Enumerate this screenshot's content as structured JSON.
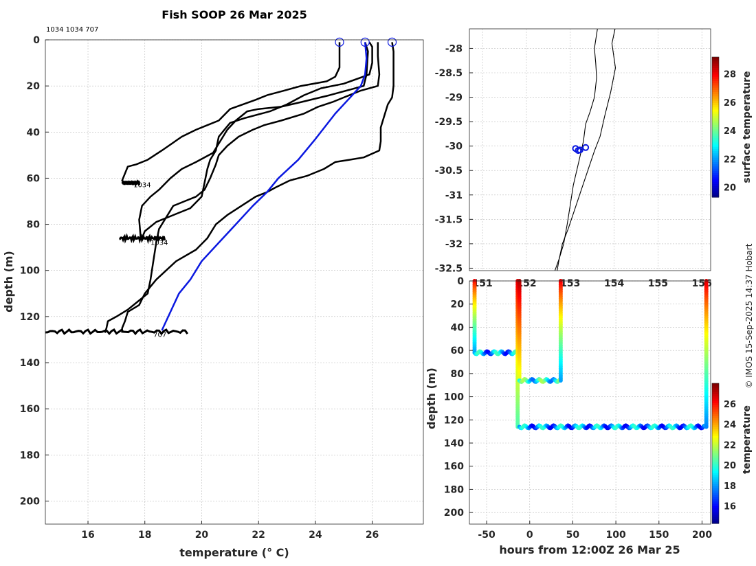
{
  "colors": {
    "profile": "#000000",
    "highlight": "#0a18e0",
    "frame": "#262626",
    "grid": "#bcbcbc"
  },
  "credit": "© IMOS 15-Sep-2025 14:37 Hobart",
  "chart_data": [
    {
      "type": "line",
      "title": "Fish SOOP 26 Mar 2025",
      "subtitle": "1034 1034 707",
      "xlabel": "temperature (° C)",
      "ylabel": "depth (m)",
      "xlim": [
        14.5,
        27.8
      ],
      "ylim": [
        210,
        0
      ],
      "xticks": [
        16,
        18,
        20,
        22,
        24,
        26
      ],
      "yticks": [
        0,
        20,
        40,
        60,
        80,
        100,
        120,
        140,
        160,
        180,
        200
      ],
      "grid": true,
      "annotations": [
        {
          "text": "1034",
          "x": 17.6,
          "y": 63
        },
        {
          "text": "1034",
          "x": 18.2,
          "y": 88
        },
        {
          "text": "707",
          "x": 18.3,
          "y": 128
        }
      ],
      "series": [
        {
          "role": "profile",
          "values": [
            [
              24.85,
              1
            ],
            [
              24.85,
              12
            ],
            [
              24.7,
              16
            ],
            [
              24.4,
              18
            ],
            [
              23.5,
              20
            ],
            [
              22.9,
              22
            ],
            [
              22.3,
              24
            ],
            [
              21.9,
              26
            ],
            [
              21.0,
              30
            ],
            [
              20.6,
              35
            ],
            [
              20.2,
              37
            ],
            [
              19.8,
              39
            ],
            [
              19.3,
              42
            ],
            [
              18.6,
              48
            ],
            [
              18.1,
              52
            ],
            [
              17.7,
              54
            ],
            [
              17.4,
              55
            ],
            [
              17.3,
              58
            ],
            [
              17.2,
              61
            ],
            [
              17.3,
              62
            ],
            [
              17.5,
              62
            ],
            [
              17.8,
              62
            ]
          ]
        },
        {
          "role": "profile",
          "values": [
            [
              25.75,
              1
            ],
            [
              25.85,
              5
            ],
            [
              25.8,
              15
            ],
            [
              25.7,
              20
            ],
            [
              24.5,
              24
            ],
            [
              23.5,
              27
            ],
            [
              22.8,
              29
            ],
            [
              22.0,
              30
            ],
            [
              21.6,
              31
            ],
            [
              21.2,
              35
            ],
            [
              20.9,
              39
            ],
            [
              20.7,
              43
            ],
            [
              20.4,
              49
            ],
            [
              19.8,
              53
            ],
            [
              19.3,
              56
            ],
            [
              18.9,
              60
            ],
            [
              18.5,
              65
            ],
            [
              18.2,
              68
            ],
            [
              17.9,
              72
            ],
            [
              17.8,
              78
            ],
            [
              17.85,
              85
            ],
            [
              17.9,
              86
            ],
            [
              18.6,
              86
            ]
          ]
        },
        {
          "role": "profile",
          "values": [
            [
              25.9,
              1
            ],
            [
              26.0,
              3
            ],
            [
              26.0,
              10
            ],
            [
              25.9,
              15
            ],
            [
              25.0,
              19
            ],
            [
              24.2,
              21
            ],
            [
              23.6,
              24
            ],
            [
              23.0,
              28
            ],
            [
              22.4,
              31
            ],
            [
              21.5,
              34
            ],
            [
              21.0,
              36
            ],
            [
              20.8,
              39
            ],
            [
              20.6,
              42
            ],
            [
              20.5,
              48
            ],
            [
              20.3,
              52
            ],
            [
              20.2,
              56
            ],
            [
              20.1,
              62
            ],
            [
              20.0,
              68
            ],
            [
              19.6,
              73
            ],
            [
              19.0,
              76
            ],
            [
              18.4,
              79
            ],
            [
              18.0,
              83
            ],
            [
              17.9,
              86
            ]
          ]
        },
        {
          "role": "profile",
          "values": [
            [
              26.2,
              1
            ],
            [
              26.2,
              7
            ],
            [
              26.25,
              15
            ],
            [
              26.2,
              20
            ],
            [
              25.6,
              22
            ],
            [
              25.0,
              25
            ],
            [
              24.6,
              27
            ],
            [
              24.1,
              29
            ],
            [
              23.6,
              32
            ],
            [
              22.8,
              35
            ],
            [
              22.2,
              37
            ],
            [
              21.8,
              39
            ],
            [
              21.3,
              42
            ],
            [
              20.9,
              46
            ],
            [
              20.6,
              50
            ],
            [
              20.5,
              54
            ],
            [
              20.3,
              60
            ],
            [
              20.1,
              65
            ],
            [
              19.8,
              68
            ],
            [
              19.4,
              70
            ],
            [
              19.0,
              72
            ],
            [
              18.7,
              78
            ],
            [
              18.5,
              82
            ],
            [
              18.4,
              88
            ],
            [
              18.3,
              96
            ],
            [
              18.2,
              104
            ],
            [
              18.1,
              110
            ],
            [
              17.8,
              113
            ],
            [
              17.4,
              117
            ],
            [
              17.0,
              120
            ],
            [
              16.7,
              122
            ],
            [
              16.65,
              125
            ],
            [
              16.6,
              127
            ]
          ]
        },
        {
          "role": "profile",
          "values": [
            [
              26.7,
              1
            ],
            [
              26.75,
              5
            ],
            [
              26.75,
              20
            ],
            [
              26.7,
              25
            ],
            [
              26.55,
              28
            ],
            [
              26.5,
              30
            ],
            [
              26.4,
              34
            ],
            [
              26.3,
              38
            ],
            [
              26.3,
              44
            ],
            [
              26.25,
              48
            ],
            [
              25.7,
              51
            ],
            [
              25.2,
              52
            ],
            [
              24.7,
              53
            ],
            [
              24.3,
              56
            ],
            [
              23.7,
              59
            ],
            [
              23.1,
              61
            ],
            [
              22.6,
              64
            ],
            [
              22.3,
              66
            ],
            [
              21.9,
              68
            ],
            [
              21.4,
              72
            ],
            [
              20.9,
              76
            ],
            [
              20.5,
              80
            ],
            [
              20.2,
              86
            ],
            [
              19.8,
              91
            ],
            [
              19.1,
              96
            ],
            [
              18.4,
              104
            ],
            [
              18.0,
              110
            ],
            [
              17.8,
              115
            ],
            [
              17.4,
              118
            ],
            [
              17.3,
              122
            ],
            [
              17.2,
              125
            ],
            [
              17.2,
              127
            ]
          ]
        },
        {
          "role": "highlight",
          "values": [
            [
              25.75,
              1
            ],
            [
              25.8,
              8
            ],
            [
              25.75,
              15
            ],
            [
              25.6,
              20
            ],
            [
              24.7,
              32
            ],
            [
              24.0,
              43
            ],
            [
              23.4,
              52
            ],
            [
              22.7,
              60
            ],
            [
              22.3,
              66
            ],
            [
              21.8,
              72
            ],
            [
              21.2,
              80
            ],
            [
              20.6,
              88
            ],
            [
              20.0,
              96
            ],
            [
              19.6,
              104
            ],
            [
              19.2,
              110
            ],
            [
              18.6,
              126
            ]
          ]
        }
      ],
      "endpoint_markers": [
        [
          24.85,
          1
        ],
        [
          25.75,
          1
        ],
        [
          26.7,
          1
        ]
      ],
      "noise_bars": [
        [
          17.2,
          62,
          0.6
        ],
        [
          17.1,
          86,
          1.6
        ],
        [
          14.5,
          126.5,
          5.0
        ]
      ]
    },
    {
      "type": "scatter",
      "xlabel": "",
      "ylabel": "",
      "xlim": [
        150.7,
        156.2
      ],
      "ylim": [
        -32.55,
        -27.6
      ],
      "xticks": [
        151,
        152,
        153,
        154,
        155,
        156
      ],
      "yticks": [
        -28,
        -28.5,
        -29,
        -29.5,
        -30,
        -30.5,
        -31,
        -31.5,
        -32,
        -32.5
      ],
      "grid": true,
      "colorbar": {
        "label": "surface temperature",
        "range": [
          19.3,
          29.2
        ],
        "ticks": [
          20,
          22,
          24,
          26,
          28
        ]
      },
      "points": [
        [
          153.12,
          -30.05
        ],
        [
          153.18,
          -30.09
        ],
        [
          153.22,
          -30.08
        ],
        [
          153.35,
          -30.03
        ]
      ],
      "coast_line": [
        [
          153.62,
          -27.6
        ],
        [
          153.55,
          -28.0
        ],
        [
          153.58,
          -28.3
        ],
        [
          153.6,
          -28.6
        ],
        [
          153.55,
          -29.0
        ],
        [
          153.45,
          -29.3
        ],
        [
          153.35,
          -29.55
        ],
        [
          153.3,
          -29.9
        ],
        [
          153.2,
          -30.3
        ],
        [
          153.07,
          -30.8
        ],
        [
          153.0,
          -31.2
        ],
        [
          152.93,
          -31.6
        ],
        [
          152.85,
          -32.0
        ],
        [
          152.75,
          -32.3
        ],
        [
          152.65,
          -32.55
        ]
      ],
      "shelf_line": [
        [
          154.02,
          -27.6
        ],
        [
          153.95,
          -27.9
        ],
        [
          154.03,
          -28.4
        ],
        [
          153.92,
          -28.9
        ],
        [
          153.78,
          -29.4
        ],
        [
          153.68,
          -29.8
        ],
        [
          153.55,
          -30.1
        ],
        [
          153.4,
          -30.5
        ],
        [
          153.25,
          -30.9
        ],
        [
          153.1,
          -31.3
        ],
        [
          152.95,
          -31.7
        ],
        [
          152.82,
          -32.0
        ],
        [
          152.75,
          -32.3
        ],
        [
          152.7,
          -32.55
        ]
      ]
    },
    {
      "type": "scatter",
      "xlabel": "hours from 12:00Z 26 Mar 25",
      "ylabel": "depth (m)",
      "xlim": [
        -70,
        210
      ],
      "ylim": [
        210,
        0
      ],
      "xticks": [
        -50,
        0,
        50,
        100,
        150,
        200
      ],
      "yticks": [
        0,
        20,
        40,
        60,
        80,
        100,
        120,
        140,
        160,
        180,
        200
      ],
      "grid": true,
      "colorbar": {
        "label": "temperature",
        "range": [
          14.3,
          28.0
        ],
        "ticks": [
          16,
          18,
          20,
          22,
          24,
          26
        ]
      },
      "tracks": [
        {
          "kind": "vertical",
          "x": -64,
          "from": 0,
          "to": 62,
          "t_top": 26.5,
          "t_bottom": 18.2
        },
        {
          "kind": "horizontal",
          "from": -64,
          "to": -14,
          "depth": 62,
          "temp": 18.2
        },
        {
          "kind": "vertical",
          "x": -14,
          "from": 0,
          "to": 126,
          "t_top": 26.8,
          "t_bottom": 20.5
        },
        {
          "kind": "vertical",
          "x": -12,
          "from": 0,
          "to": 86,
          "t_top": 27.5,
          "t_bottom": 22.5
        },
        {
          "kind": "horizontal",
          "from": -12,
          "to": 36,
          "depth": 86,
          "temp": 19.6
        },
        {
          "kind": "vertical",
          "x": 36,
          "from": 0,
          "to": 86,
          "t_top": 26.8,
          "t_bottom": 18.2
        },
        {
          "kind": "horizontal",
          "from": -12,
          "to": 205,
          "depth": 126,
          "temp": 18.0
        },
        {
          "kind": "vertical",
          "x": 205,
          "from": 0,
          "to": 126,
          "t_top": 27.0,
          "t_bottom": 17.8
        }
      ]
    }
  ]
}
